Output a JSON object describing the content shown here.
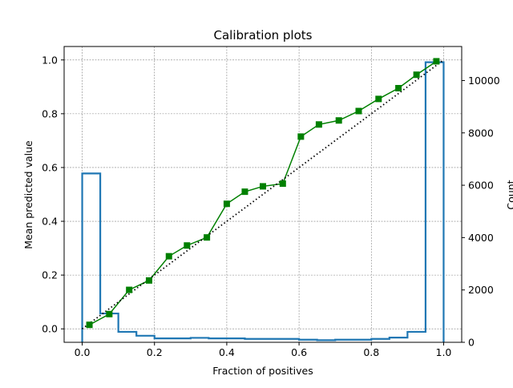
{
  "chart_data": {
    "type": "line",
    "title": "Calibration plots",
    "xlabel": "Fraction of positives",
    "ylabel": "Mean predicted value",
    "y2label": "Count",
    "xlim": [
      -0.05,
      1.05
    ],
    "ylim": [
      -0.05,
      1.05
    ],
    "y2lim": [
      0,
      11300
    ],
    "grid": true,
    "x_ticks": [
      "0.0",
      "0.2",
      "0.4",
      "0.6",
      "0.8",
      "1.0"
    ],
    "y_ticks": [
      "0.0",
      "0.2",
      "0.4",
      "0.6",
      "0.8",
      "1.0"
    ],
    "y2_ticks": [
      "0",
      "2000",
      "4000",
      "6000",
      "8000",
      "10000"
    ],
    "series": [
      {
        "color": "#008000",
        "marker": "square",
        "x": [
          0.02,
          0.075,
          0.13,
          0.185,
          0.24,
          0.29,
          0.345,
          0.4,
          0.45,
          0.5,
          0.555,
          0.605,
          0.655,
          0.71,
          0.765,
          0.82,
          0.875,
          0.925,
          0.98
        ],
        "y": [
          0.015,
          0.055,
          0.145,
          0.18,
          0.27,
          0.31,
          0.34,
          0.465,
          0.51,
          0.53,
          0.54,
          0.715,
          0.76,
          0.775,
          0.81,
          0.855,
          0.895,
          0.945,
          0.995
        ]
      },
      {
        "color": "#000000",
        "style": "dotted",
        "x": [
          0,
          1
        ],
        "y": [
          0,
          1
        ]
      }
    ],
    "histogram": {
      "color": "#1f77b4",
      "axis": "right",
      "bin_edges": [
        0,
        0.05,
        0.1,
        0.15,
        0.2,
        0.25,
        0.3,
        0.35,
        0.4,
        0.45,
        0.5,
        0.55,
        0.6,
        0.65,
        0.7,
        0.75,
        0.8,
        0.85,
        0.9,
        0.95,
        1.0
      ],
      "counts": [
        6450,
        1100,
        400,
        250,
        150,
        150,
        170,
        150,
        150,
        130,
        130,
        130,
        100,
        80,
        100,
        100,
        130,
        180,
        400,
        10700
      ]
    }
  }
}
